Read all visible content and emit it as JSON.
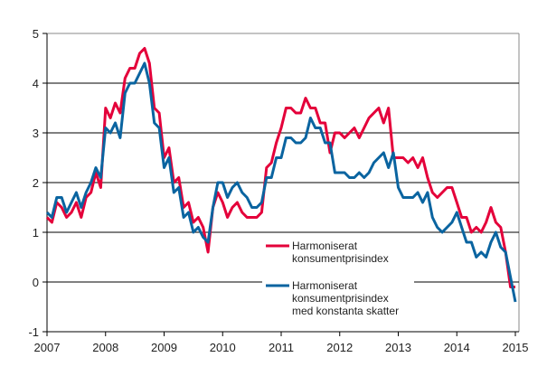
{
  "chart_data": {
    "type": "line",
    "title": "",
    "xlabel": "",
    "ylabel": "",
    "ylim": [
      -1,
      5
    ],
    "yticks": [
      "-1",
      "0",
      "1",
      "2",
      "3",
      "4",
      "5"
    ],
    "xticks": [
      "2007",
      "2008",
      "2009",
      "2010",
      "2011",
      "2012",
      "2013",
      "2014",
      "2015"
    ],
    "x_start": "2007-01",
    "x_end": "2015-01",
    "frequency": "monthly",
    "grid": true,
    "legend_position": "inside-bottom-center",
    "series": [
      {
        "name": "Harmoniserat konsumentprisindex",
        "name_lines": [
          "Harmoniserat",
          "konsumentprisindex"
        ],
        "color": "#e4003a",
        "values": [
          1.3,
          1.2,
          1.6,
          1.5,
          1.3,
          1.4,
          1.6,
          1.3,
          1.7,
          1.8,
          2.2,
          1.9,
          3.5,
          3.3,
          3.6,
          3.4,
          4.1,
          4.3,
          4.3,
          4.6,
          4.7,
          4.4,
          3.5,
          3.4,
          2.5,
          2.7,
          2.0,
          2.1,
          1.5,
          1.6,
          1.2,
          1.3,
          1.1,
          0.6,
          1.5,
          1.8,
          1.6,
          1.3,
          1.5,
          1.6,
          1.4,
          1.3,
          1.3,
          1.3,
          1.4,
          2.3,
          2.4,
          2.8,
          3.1,
          3.5,
          3.5,
          3.4,
          3.4,
          3.7,
          3.5,
          3.5,
          3.2,
          3.2,
          2.6,
          3.0,
          3.0,
          2.9,
          3.0,
          3.1,
          2.9,
          3.1,
          3.3,
          3.4,
          3.5,
          3.2,
          3.5,
          2.5,
          2.5,
          2.5,
          2.4,
          2.5,
          2.3,
          2.5,
          2.1,
          1.8,
          1.7,
          1.8,
          1.9,
          1.9,
          1.6,
          1.3,
          1.3,
          1.0,
          1.1,
          1.0,
          1.2,
          1.5,
          1.2,
          1.1,
          0.6,
          -0.1,
          -0.1
        ]
      },
      {
        "name": "Harmoniserat konsumentprisindex med konstanta skatter",
        "name_lines": [
          "Harmoniserat",
          "konsumentprisindex",
          "med konstanta skatter"
        ],
        "color": "#0a64a0",
        "values": [
          1.4,
          1.3,
          1.7,
          1.7,
          1.4,
          1.6,
          1.8,
          1.5,
          1.8,
          2.0,
          2.3,
          2.1,
          3.1,
          3.0,
          3.2,
          2.9,
          3.8,
          4.0,
          4.0,
          4.2,
          4.4,
          4.0,
          3.2,
          3.1,
          2.3,
          2.5,
          1.8,
          1.9,
          1.3,
          1.4,
          1.0,
          1.1,
          0.9,
          0.8,
          1.5,
          2.0,
          2.0,
          1.7,
          1.9,
          2.0,
          1.8,
          1.7,
          1.5,
          1.5,
          1.6,
          2.1,
          2.1,
          2.5,
          2.5,
          2.9,
          2.9,
          2.8,
          2.8,
          2.9,
          3.3,
          3.1,
          3.1,
          2.8,
          2.8,
          2.2,
          2.2,
          2.2,
          2.1,
          2.1,
          2.2,
          2.1,
          2.2,
          2.4,
          2.5,
          2.6,
          2.3,
          2.6,
          1.9,
          1.7,
          1.7,
          1.7,
          1.8,
          1.6,
          1.8,
          1.3,
          1.1,
          1.0,
          1.1,
          1.2,
          1.4,
          1.1,
          0.8,
          0.8,
          0.5,
          0.6,
          0.5,
          0.8,
          1.0,
          0.7,
          0.6,
          0.1,
          -0.4
        ]
      }
    ]
  }
}
